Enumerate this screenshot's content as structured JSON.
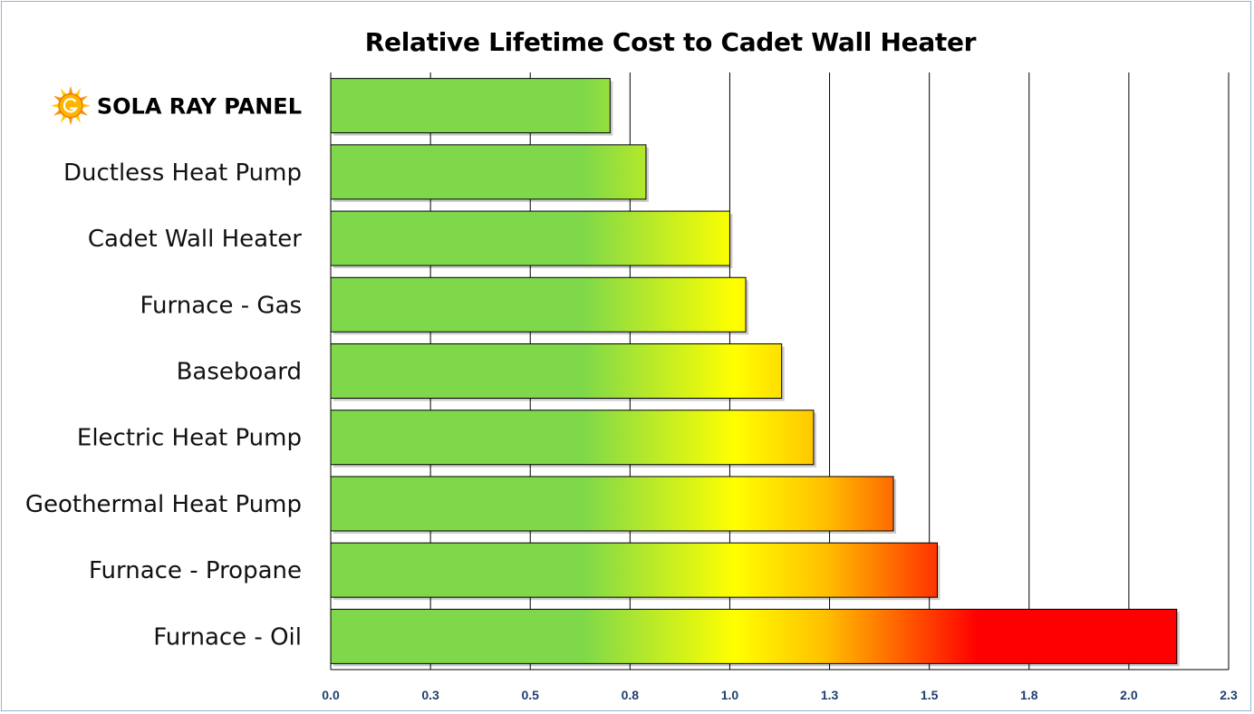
{
  "chart_data": {
    "type": "bar",
    "orientation": "horizontal",
    "title": "Relative Lifetime Cost to Cadet Wall Heater",
    "xlabel": "",
    "ylabel": "",
    "categories": [
      "SOLA RAY PANEL",
      "Ductless Heat Pump",
      "Cadet Wall Heater",
      "Furnace - Gas",
      "Baseboard",
      "Electric Heat Pump",
      "Geothermal Heat Pump",
      "Furnace - Propane",
      "Furnace - Oil"
    ],
    "values": [
      0.7,
      0.79,
      1.0,
      1.04,
      1.13,
      1.21,
      1.41,
      1.52,
      2.12
    ],
    "xlim": [
      0,
      2.25
    ],
    "x_ticks": [
      0,
      0.25,
      0.5,
      0.75,
      1.0,
      1.25,
      1.5,
      1.75,
      2.0,
      2.25
    ],
    "x_tick_labels": [
      "0.0",
      "0.3",
      "0.5",
      "0.8",
      "1.0",
      "1.3",
      "1.5",
      "1.8",
      "2.0",
      "2.3"
    ],
    "grid": "vertical",
    "legend": "none",
    "colors": {
      "green": "#7ed84a",
      "yellow": "#ffff00",
      "orange": "#ffc000",
      "red": "#ff0000",
      "gridline": "#000000",
      "tick_text": "#1f3e6e",
      "frame": "#8fb4dc"
    },
    "highlight_category_icon": "sun-logo-icon"
  }
}
